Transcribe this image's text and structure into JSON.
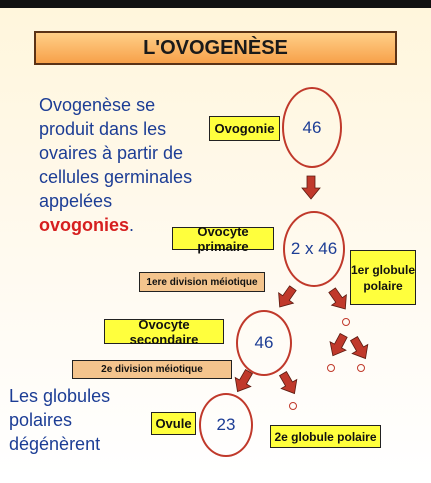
{
  "title": "L'OVOGENÈSE",
  "intro": {
    "text": "Ovogenèse se produit dans les ovaires à partir de cellules germinales appelées ",
    "highlight": "ovogonies",
    "suffix": "."
  },
  "outro": "Les globules polaires dégénèrent",
  "stages": {
    "ovogonie": {
      "label": "Ovogonie",
      "count": "46"
    },
    "ovocyte_primaire": {
      "label": "Ovocyte primaire",
      "count": "2 x 46"
    },
    "division1": "1ere division méiotique",
    "globule1": "1er globule polaire",
    "ovocyte_secondaire": {
      "label": "Ovocyte secondaire",
      "count": "46"
    },
    "division2": "2e division méiotique",
    "ovule": {
      "label": "Ovule",
      "count": "23"
    },
    "globule2": "2e globule polaire"
  },
  "colors": {
    "title_fill": "#f7a14a",
    "label_yellow": "#ffff3d",
    "label_tan": "#f4c48d",
    "circle_stroke": "#c0392b",
    "arrow_fill": "#c0392b",
    "text_blue": "#1c3d95",
    "highlight_red": "#d61f1f"
  }
}
